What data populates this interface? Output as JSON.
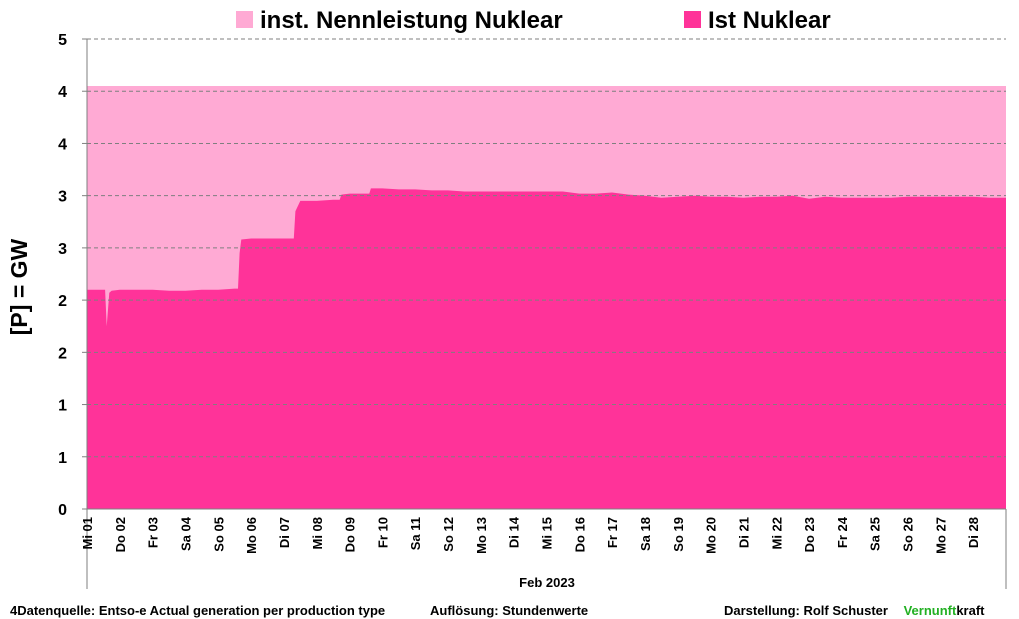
{
  "chart_data": {
    "type": "area",
    "title": "",
    "xlabel": "Feb 2023",
    "ylabel": "[P]  =  GW",
    "y_range": [
      0,
      4.5
    ],
    "y_tick_labels": [
      "0",
      "1",
      "1",
      "2",
      "2",
      "3",
      "3",
      "4",
      "4",
      "5"
    ],
    "x_range": [
      0,
      28
    ],
    "x_tick_labels": [
      "Mi 01",
      "Do 02",
      "Fr 03",
      "Sa 04",
      "So 05",
      "Mo 06",
      "Di 07",
      "Mi 08",
      "Do 09",
      "Fr 10",
      "Sa 11",
      "So 12",
      "Mo 13",
      "Di 14",
      "Mi 15",
      "Do 16",
      "Fr 17",
      "Sa 18",
      "So 19",
      "Mo 20",
      "Di 21",
      "Mi 22",
      "Do 23",
      "Fr 24",
      "Sa 25",
      "So 26",
      "Mo 27",
      "Di 28"
    ],
    "grid": true,
    "legend_position": "top",
    "series": [
      {
        "name": "inst. Nennleistung Nuklear",
        "color": "#ffaad4",
        "x": [
          0,
          28
        ],
        "values": [
          4.05,
          4.05
        ]
      },
      {
        "name": "Ist Nuklear",
        "color": "#ff3399",
        "x": [
          0,
          0.55,
          0.6,
          0.68,
          0.75,
          1.0,
          1.5,
          2.0,
          2.5,
          3.0,
          3.5,
          4.0,
          4.5,
          4.6,
          4.65,
          4.7,
          5.0,
          5.5,
          6.0,
          6.3,
          6.35,
          6.5,
          6.6,
          7.0,
          7.5,
          7.7,
          7.75,
          8.0,
          8.5,
          8.6,
          8.65,
          9.0,
          9.5,
          10.0,
          10.5,
          11.0,
          11.5,
          12.0,
          12.5,
          13.0,
          13.5,
          14.0,
          14.5,
          15.0,
          15.5,
          16.0,
          16.5,
          17.0,
          17.5,
          18.0,
          18.5,
          19.0,
          19.5,
          20.0,
          20.5,
          21.0,
          21.5,
          22.0,
          22.5,
          23.0,
          23.5,
          24.0,
          24.5,
          25.0,
          25.5,
          26.0,
          26.5,
          27.0,
          27.5,
          28.0
        ],
        "values": [
          2.1,
          2.1,
          1.75,
          2.07,
          2.09,
          2.1,
          2.1,
          2.1,
          2.09,
          2.09,
          2.1,
          2.1,
          2.11,
          2.11,
          2.45,
          2.58,
          2.59,
          2.59,
          2.59,
          2.59,
          2.85,
          2.95,
          2.95,
          2.95,
          2.96,
          2.96,
          3.01,
          3.02,
          3.02,
          3.02,
          3.07,
          3.07,
          3.06,
          3.06,
          3.05,
          3.05,
          3.04,
          3.04,
          3.04,
          3.04,
          3.04,
          3.04,
          3.04,
          3.02,
          3.02,
          3.03,
          3.01,
          3.0,
          2.98,
          2.99,
          3.0,
          2.99,
          2.99,
          2.98,
          2.99,
          2.99,
          3.0,
          2.97,
          2.99,
          2.98,
          2.98,
          2.98,
          2.98,
          2.99,
          2.99,
          2.99,
          2.99,
          2.99,
          2.98,
          2.98
        ]
      }
    ]
  },
  "footer": {
    "source": "4Datenquelle: Entso-e  Actual generation per production type",
    "resolution": "Auflösung: Stundenwerte",
    "author_prefix": "Darstellung:  Rolf Schuster",
    "brand_accent": "Vernunft",
    "brand_rest": "kraft"
  }
}
